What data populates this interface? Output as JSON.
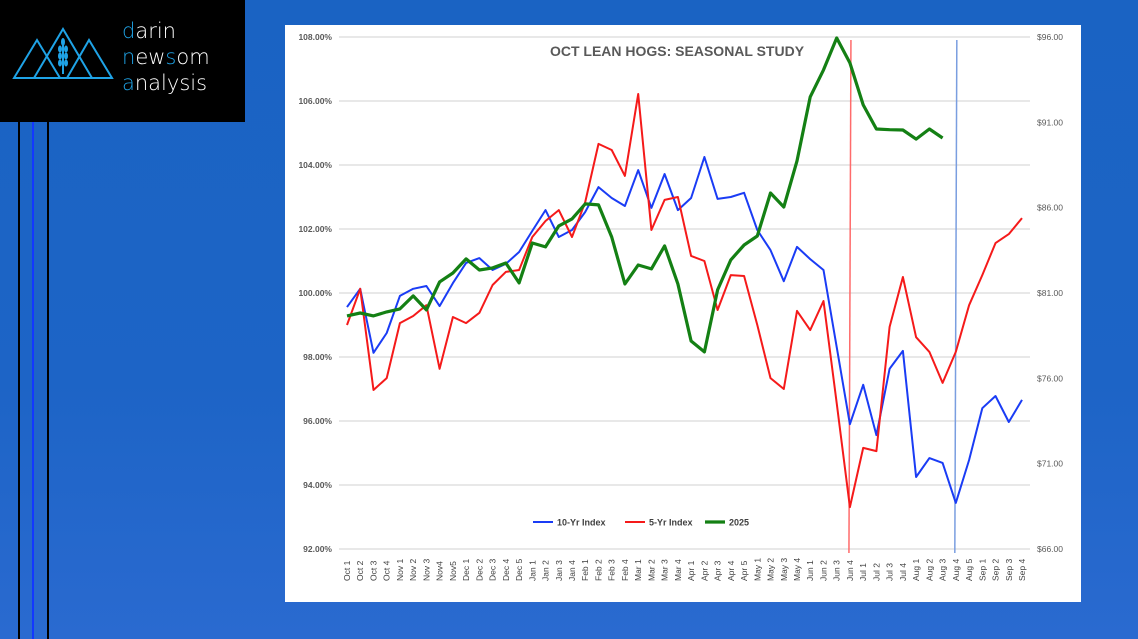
{
  "logo": {
    "line1": "darin",
    "line2": "newsom",
    "line3": "analysis"
  },
  "colors": {
    "blue": "#1a3cf5",
    "red": "#f51a1a",
    "green": "#148014",
    "marker_red": "#ff6b6b",
    "marker_blue": "#7a9ee0"
  },
  "chart_data": {
    "type": "line",
    "title": "OCT LEAN HOGS: SEASONAL STUDY",
    "legend_position": "bottom-center",
    "grid": true,
    "categories": [
      "Oct 1",
      "Oct 2",
      "Oct 3",
      "Oct 4",
      "Nov 1",
      "Nov 2",
      "Nov 3",
      "Nov4",
      "Nov5",
      "Dec 1",
      "Dec 2",
      "Dec 3",
      "Dec 4",
      "Dec 5",
      "Jan 1",
      "Jan 2",
      "Jan 3",
      "Jan 4",
      "Feb 1",
      "Feb 2",
      "Feb 3",
      "Feb 4",
      "Mar 1",
      "Mar 2",
      "Mar 3",
      "Mar 4",
      "Apr 1",
      "Apr 2",
      "Apr 3",
      "Apr 4",
      "Apr 5",
      "May 1",
      "May 2",
      "May 3",
      "May 4",
      "Jun 1",
      "Jun 2",
      "Jun 3",
      "Jun 4",
      "Jul 1",
      "Jul 2",
      "Jul 3",
      "Jul 4",
      "Aug 1",
      "Aug 2",
      "Aug 3",
      "Aug 4",
      "Aug 5",
      "Sep 1",
      "Sep 2",
      "Sep 3",
      "Sep 4"
    ],
    "y_left": {
      "range": [
        92,
        108
      ],
      "ticks": [
        "92.00%",
        "94.00%",
        "96.00%",
        "98.00%",
        "100.00%",
        "102.00%",
        "104.00%",
        "106.00%",
        "108.00%"
      ]
    },
    "y_right": {
      "range": [
        66,
        96
      ],
      "ticks": [
        "$66.00",
        "$71.00",
        "$76.00",
        "$81.00",
        "$86.00",
        "$91.00",
        "$96.00"
      ]
    },
    "series": [
      {
        "name": "10-Yr Index",
        "axis": "left",
        "color": "#1a3cf5",
        "values": [
          99.56,
          100.13,
          98.13,
          98.75,
          99.91,
          100.13,
          100.22,
          99.59,
          100.31,
          100.94,
          101.09,
          100.72,
          100.91,
          101.28,
          101.94,
          102.59,
          101.75,
          101.97,
          102.53,
          103.31,
          102.97,
          102.72,
          103.84,
          102.66,
          103.72,
          102.59,
          102.97,
          104.25,
          102.94,
          103.0,
          103.13,
          101.97,
          101.34,
          100.37,
          101.44,
          101.06,
          100.72,
          98.31,
          95.9,
          97.13,
          95.56,
          97.63,
          98.19,
          94.25,
          94.84,
          94.69,
          93.44,
          94.78,
          96.4,
          96.78,
          95.97,
          96.66
        ]
      },
      {
        "name": "5-Yr Index",
        "axis": "left",
        "color": "#f51a1a",
        "values": [
          99.0,
          100.13,
          96.97,
          97.34,
          99.06,
          99.28,
          99.62,
          97.63,
          99.25,
          99.06,
          99.38,
          100.25,
          100.66,
          100.72,
          101.75,
          102.25,
          102.59,
          101.75,
          102.84,
          104.66,
          104.47,
          103.66,
          106.22,
          101.97,
          102.91,
          103.0,
          101.16,
          101.0,
          99.47,
          100.56,
          100.53,
          99.0,
          97.34,
          97.0,
          99.44,
          98.84,
          99.75,
          96.56,
          93.31,
          95.16,
          95.06,
          98.94,
          100.5,
          98.62,
          98.16,
          97.19,
          98.16,
          99.62,
          100.56,
          101.56,
          101.84,
          102.34
        ]
      },
      {
        "name": "2025",
        "axis": "right",
        "color": "#148014",
        "values": [
          79.66,
          79.83,
          79.66,
          79.89,
          80.07,
          80.83,
          80.01,
          81.65,
          82.17,
          83.0,
          82.35,
          82.47,
          82.76,
          81.59,
          83.93,
          83.7,
          84.93,
          85.34,
          86.22,
          86.16,
          84.28,
          81.53,
          82.64,
          82.41,
          83.76,
          81.53,
          78.19,
          77.55,
          81.18,
          82.94,
          83.81,
          84.34,
          86.86,
          86.04,
          88.74,
          92.49,
          94.07,
          95.94,
          94.48,
          92.02,
          90.61,
          90.57,
          90.55,
          90.02,
          90.61,
          90.08,
          null,
          null,
          null,
          null,
          null,
          null
        ]
      }
    ],
    "vertical_markers": [
      {
        "category": "Jun 4",
        "color": "#ff6b6b"
      },
      {
        "category": "Aug 4",
        "color": "#7a9ee0"
      }
    ]
  }
}
